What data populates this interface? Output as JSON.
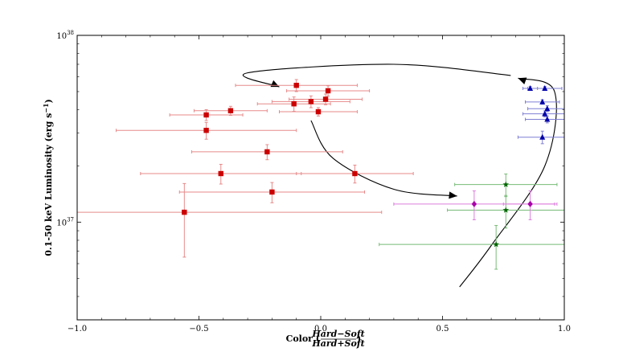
{
  "chart_data": {
    "type": "scatter",
    "title": "",
    "xlabel": "Color (",
    "xlabel_frac_num": "Hard−Soft",
    "xlabel_frac_den": "Hard+Soft",
    "xlabel_close": ")",
    "ylabel": "0.1-50 keV Luminosity (erg s",
    "ylabel_sup": "−1",
    "ylabel_close": ")",
    "xlim": [
      -1.0,
      1.0
    ],
    "ylim": [
      3e+36,
      1e+38
    ],
    "yscale": "log",
    "grid": false,
    "xticks": [
      {
        "value": -1.0,
        "label": "−1.0"
      },
      {
        "value": -0.5,
        "label": "−0.5"
      },
      {
        "value": 0.0,
        "label": "0.0"
      },
      {
        "value": 0.5,
        "label": "0.5"
      },
      {
        "value": 1.0,
        "label": "1.0"
      }
    ],
    "yticks": [
      {
        "value": 1e+37,
        "base": "10",
        "exp": "37"
      },
      {
        "value": 1e+38,
        "base": "10",
        "exp": "38"
      }
    ],
    "series": [
      {
        "marker": "square",
        "color": "#cc0000",
        "errcolor": "#e88a8a",
        "points": [
          {
            "x": -0.1,
            "y": 5.4e+37,
            "xerr": 0.25,
            "yerr": 4e+36
          },
          {
            "x": 0.03,
            "y": 5.05e+37,
            "xerr": 0.17,
            "yerr": 3.2e+36
          },
          {
            "x": -0.04,
            "y": 4.42e+37,
            "xerr": 0.16,
            "yerr": 3.2e+36
          },
          {
            "x": 0.02,
            "y": 4.55e+37,
            "xerr": 0.15,
            "yerr": 3e+36
          },
          {
            "x": -0.11,
            "y": 4.3e+37,
            "xerr": 0.15,
            "yerr": 3.8e+36
          },
          {
            "x": -0.37,
            "y": 3.95e+37,
            "xerr": 0.15,
            "yerr": 2.2e+36
          },
          {
            "x": -0.47,
            "y": 3.75e+37,
            "xerr": 0.15,
            "yerr": 2.5e+36
          },
          {
            "x": -0.01,
            "y": 3.9e+37,
            "xerr": 0.16,
            "yerr": 2e+36
          },
          {
            "x": -0.47,
            "y": 3.1e+37,
            "xerr": 0.37,
            "yerr": 3.2e+36
          },
          {
            "x": -0.22,
            "y": 2.38e+37,
            "xerr": 0.31,
            "yerr": 2.2e+36
          },
          {
            "x": -0.41,
            "y": 1.82e+37,
            "xerr": 0.33,
            "yerr": 2.2e+36
          },
          {
            "x": 0.14,
            "y": 1.82e+37,
            "xerr": 0.24,
            "yerr": 2e+36
          },
          {
            "x": -0.2,
            "y": 1.45e+37,
            "xerr": 0.38,
            "yerr": 1.8e+36
          },
          {
            "x": -0.56,
            "y": 1.13e+37,
            "xerr": 0.81,
            "yerr": 4.8e+36
          }
        ]
      },
      {
        "marker": "triangle",
        "color": "#0000aa",
        "errcolor": "#7f7fd5",
        "points": [
          {
            "x": 0.86,
            "y": 5.2e+37,
            "xerr": 0.03,
            "yerr": 1.2e+36
          },
          {
            "x": 0.92,
            "y": 5.2e+37,
            "xerr": 0.07,
            "yerr": 1.2e+36
          },
          {
            "x": 0.91,
            "y": 4.4e+37,
            "xerr": 0.07,
            "yerr": 1.2e+36
          },
          {
            "x": 0.93,
            "y": 4.05e+37,
            "xerr": 0.08,
            "yerr": 1.5e+36
          },
          {
            "x": 0.92,
            "y": 3.8e+37,
            "xerr": 0.09,
            "yerr": 1.4e+36
          },
          {
            "x": 0.93,
            "y": 3.55e+37,
            "xerr": 0.09,
            "yerr": 1.5e+36
          },
          {
            "x": 0.91,
            "y": 2.85e+37,
            "xerr": 0.1,
            "yerr": 2.2e+36
          }
        ]
      },
      {
        "marker": "star",
        "color": "#006600",
        "errcolor": "#77bb77",
        "points": [
          {
            "x": 0.76,
            "y": 1.59e+37,
            "xerr": 0.21,
            "yerr": 2.2e+36
          },
          {
            "x": 0.76,
            "y": 1.16e+37,
            "xerr": 0.24,
            "yerr": 2.3e+36
          },
          {
            "x": 0.72,
            "y": 7.6e+36,
            "xerr": 0.48,
            "yerr": 2e+36
          }
        ]
      },
      {
        "marker": "diamond",
        "color": "#aa00aa",
        "errcolor": "#dd7fdd",
        "points": [
          {
            "x": 0.63,
            "y": 1.25e+37,
            "xerr": 0.33,
            "yerr": 2.2e+36
          },
          {
            "x": 0.86,
            "y": 1.25e+37,
            "xerr": 0.11,
            "yerr": 2.2e+36
          }
        ]
      }
    ],
    "arrows": [
      {
        "points": [
          [
            0.57,
            4.5e+36
          ],
          [
            0.7,
            7.5e+36
          ],
          [
            0.92,
            2e+37
          ],
          [
            0.96,
            5e+37
          ],
          [
            0.81,
            5.9e+37
          ]
        ]
      },
      {
        "points": [
          [
            0.78,
            6.1e+37
          ],
          [
            0.3,
            7e+37
          ],
          [
            -0.3,
            6.3e+37
          ],
          [
            -0.17,
            5.3e+37
          ]
        ]
      },
      {
        "points": [
          [
            -0.04,
            3.5e+37
          ],
          [
            0.05,
            2.2e+37
          ],
          [
            0.3,
            1.5e+37
          ],
          [
            0.56,
            1.38e+37
          ]
        ]
      }
    ]
  }
}
